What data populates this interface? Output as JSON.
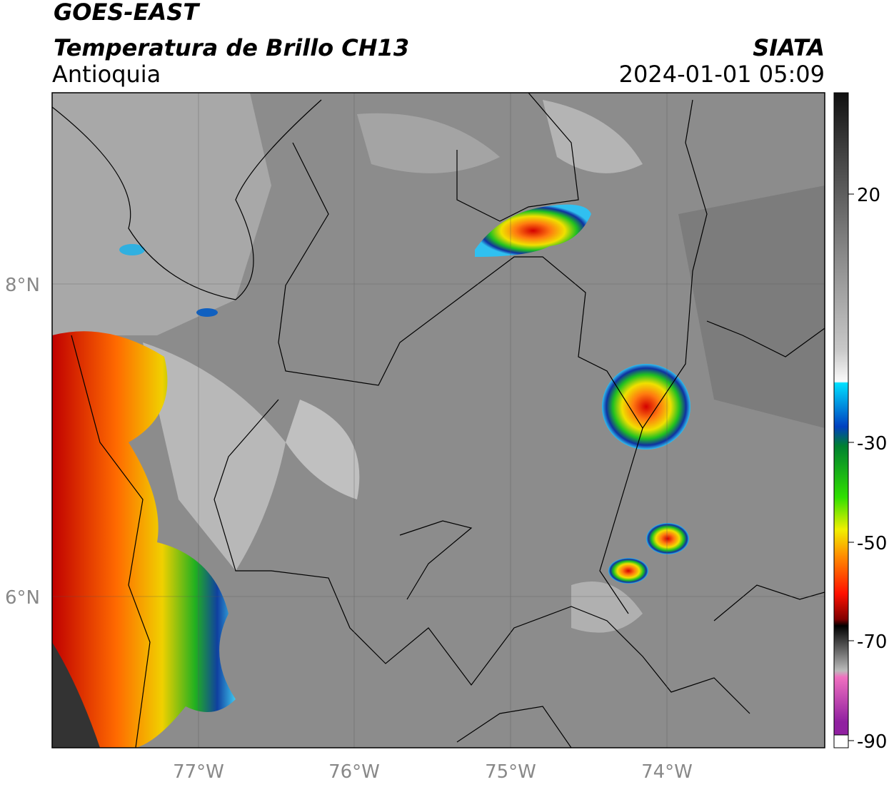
{
  "header": {
    "title": "GOES-EAST",
    "subtitle": "Temperatura de Brillo CH13",
    "region": "Antioquia",
    "source": "SIATA",
    "datetime": "2024-01-01 05:09"
  },
  "map": {
    "lat_labels": [
      "8°N",
      "6°N"
    ],
    "lon_labels": [
      "77°W",
      "76°W",
      "75°W",
      "74°W"
    ]
  },
  "colorbar": {
    "tick_labels": [
      "20",
      "-30",
      "-50",
      "-70",
      "-90"
    ]
  }
}
